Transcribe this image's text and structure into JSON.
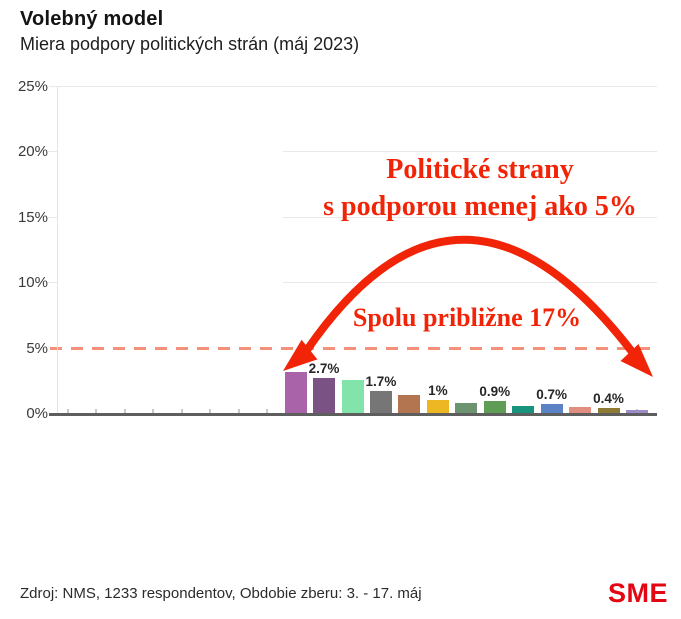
{
  "header": {
    "title": "Volebný model",
    "subtitle": "Miera podpory politických strán (máj 2023)"
  },
  "chart_data": {
    "type": "bar",
    "title": "Volebný model",
    "subtitle": "Miera podpory politických strán (máj 2023)",
    "ylim": [
      0,
      25
    ],
    "y_tick_labels_top_to_bottom": [
      "25%",
      "20%",
      "15%",
      "10%",
      "5%",
      "0%"
    ],
    "grid": true,
    "x_axis_category_ticks": 21,
    "bars": [
      {
        "value": 3.1,
        "label": "",
        "color": "#a963a8"
      },
      {
        "value": 2.7,
        "label": "2.7%",
        "color": "#7b5284"
      },
      {
        "value": 2.5,
        "label": "",
        "color": "#82e3ab"
      },
      {
        "value": 1.7,
        "label": "1.7%",
        "color": "#767676"
      },
      {
        "value": 1.4,
        "label": "",
        "color": "#b3754f"
      },
      {
        "value": 1.0,
        "label": "1%",
        "color": "#ecb722"
      },
      {
        "value": 0.8,
        "label": "",
        "color": "#6d9471"
      },
      {
        "value": 0.9,
        "label": "0.9%",
        "color": "#5f9c55"
      },
      {
        "value": 0.55,
        "label": "",
        "color": "#19947c"
      },
      {
        "value": 0.7,
        "label": "0.7%",
        "color": "#5b82c4"
      },
      {
        "value": 0.45,
        "label": "",
        "color": "#e18d80"
      },
      {
        "value": 0.4,
        "label": "0.4%",
        "color": "#8e7b33"
      },
      {
        "value": 0.2,
        "label": "",
        "color": "#9c8bc5"
      }
    ],
    "threshold_line": {
      "value": 5,
      "style": "dashed",
      "color": "#f5907b"
    },
    "annotations": [
      {
        "text": "Politické strany s podporou menej ako 5%"
      },
      {
        "text": "Spolu približne 17%"
      }
    ]
  },
  "annotation": {
    "heading_line1": "Politické strany",
    "heading_line2": "s podporou menej ako 5%",
    "arc_label": "Spolu približne 17%",
    "color": "#f12408"
  },
  "footer": {
    "source": "Zdroj: NMS, 1233 respondentov, Obdobie zberu: 3. - 17. máj",
    "logo_text": "SME",
    "logo_color": "#e30613"
  }
}
